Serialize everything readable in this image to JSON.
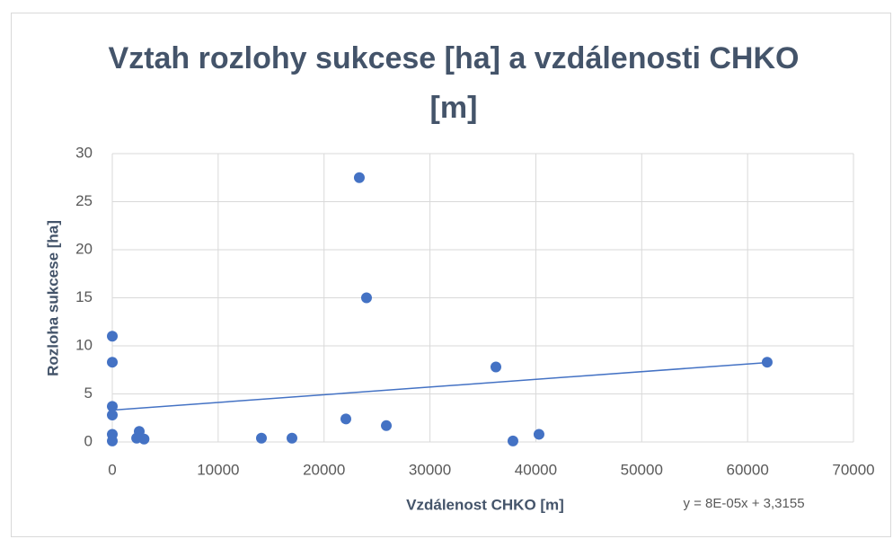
{
  "chart_data": {
    "type": "scatter",
    "title": "Vztah rozlohy sukcese [ha] a vzdálenosti CHKO [m]",
    "x_label": "Vzdálenost CHKO [m]",
    "y_label": "Rozloha sukcese [ha]",
    "color": "#4472c4",
    "x": [
      0,
      0,
      0,
      0,
      0,
      0,
      2545,
      2300,
      3000,
      14085,
      16970,
      22060,
      23330,
      24010,
      25880,
      36230,
      37840,
      40300,
      61850
    ],
    "values": [
      11,
      8.3,
      3.7,
      2.8,
      0.8,
      0.1,
      1.1,
      0.4,
      0.3,
      0.4,
      0.4,
      2.4,
      27.5,
      15,
      1.7,
      7.8,
      0.1,
      0.8,
      8.3
    ],
    "trendline": {
      "slope": 8e-05,
      "intercept": 3.3155,
      "label": "y = 8E-05x + 3,3155"
    },
    "xlim": [
      0,
      70000
    ],
    "xticks": [
      0,
      10000,
      20000,
      30000,
      40000,
      50000,
      60000,
      70000
    ],
    "ylim": [
      0,
      30
    ],
    "yticks": [
      0,
      5,
      10,
      15,
      20,
      25,
      30
    ],
    "grid": true
  }
}
